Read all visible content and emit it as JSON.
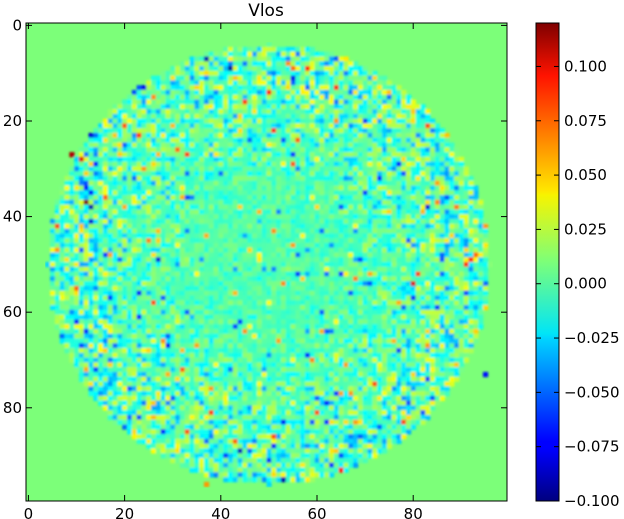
{
  "chart_data": {
    "type": "heatmap",
    "title": "Vlos",
    "xlabel": "",
    "ylabel": "",
    "xlim": [
      -0.5,
      99.5
    ],
    "ylim": [
      99.5,
      -0.5
    ],
    "x_ticks": [
      0,
      20,
      40,
      60,
      80
    ],
    "x_tick_labels": [
      "0",
      "20",
      "40",
      "60",
      "80"
    ],
    "y_ticks": [
      0,
      20,
      40,
      60,
      80
    ],
    "y_tick_labels": [
      "0",
      "20",
      "40",
      "60",
      "80"
    ],
    "colormap": "jet",
    "color_range": [
      -0.1,
      0.12
    ],
    "colorbar_ticks": [
      -0.1,
      -0.075,
      -0.05,
      -0.025,
      0.0,
      0.025,
      0.05,
      0.075,
      0.1
    ],
    "colorbar_tick_labels": [
      "−0.100",
      "−0.075",
      "−0.050",
      "−0.025",
      "0.000",
      "0.025",
      "0.050",
      "0.075",
      "0.100"
    ],
    "grid": false,
    "background_value": 0.0,
    "noise_region": {
      "center_x": 50,
      "center_y": 50,
      "radius": 46,
      "inner_radius": 15,
      "inner_amplitude": 0.01,
      "ring_amplitude": 0.035
    },
    "notable_values": [
      {
        "x": 37,
        "y": 7,
        "value": -0.09
      },
      {
        "x": 42,
        "y": 9,
        "value": -0.095
      },
      {
        "x": 55,
        "y": 9,
        "value": 0.07
      },
      {
        "x": 51,
        "y": 22,
        "value": 0.085
      },
      {
        "x": 20,
        "y": 21,
        "value": 0.075
      },
      {
        "x": 9,
        "y": 27,
        "value": 0.11
      },
      {
        "x": 11,
        "y": 28,
        "value": 0.1
      },
      {
        "x": 33,
        "y": 27,
        "value": 0.08
      },
      {
        "x": 31,
        "y": 26,
        "value": 0.07
      },
      {
        "x": 12,
        "y": 37,
        "value": 0.12
      },
      {
        "x": 13,
        "y": 38,
        "value": -0.09
      },
      {
        "x": 27,
        "y": 49,
        "value": -0.08
      },
      {
        "x": 25,
        "y": 45,
        "value": 0.065
      },
      {
        "x": 80,
        "y": 54,
        "value": 0.1
      },
      {
        "x": 81,
        "y": 52,
        "value": 0.08
      },
      {
        "x": 92,
        "y": 49,
        "value": 0.09
      },
      {
        "x": 93,
        "y": 48,
        "value": 0.07
      },
      {
        "x": 95,
        "y": 73,
        "value": -0.07
      },
      {
        "x": 28,
        "y": 85,
        "value": -0.07
      },
      {
        "x": 53,
        "y": 95,
        "value": -0.09
      },
      {
        "x": 60,
        "y": 81,
        "value": 0.075
      },
      {
        "x": 62,
        "y": 83,
        "value": -0.065
      },
      {
        "x": 51,
        "y": 88,
        "value": -0.07
      },
      {
        "x": 37,
        "y": 96,
        "value": 0.06
      },
      {
        "x": 77,
        "y": 29,
        "value": -0.07
      },
      {
        "x": 70,
        "y": 20,
        "value": -0.06
      },
      {
        "x": 17,
        "y": 57,
        "value": -0.06
      },
      {
        "x": 10,
        "y": 62,
        "value": -0.07
      },
      {
        "x": 67,
        "y": 77,
        "value": 0.06
      },
      {
        "x": 77,
        "y": 68,
        "value": -0.06
      }
    ]
  }
}
